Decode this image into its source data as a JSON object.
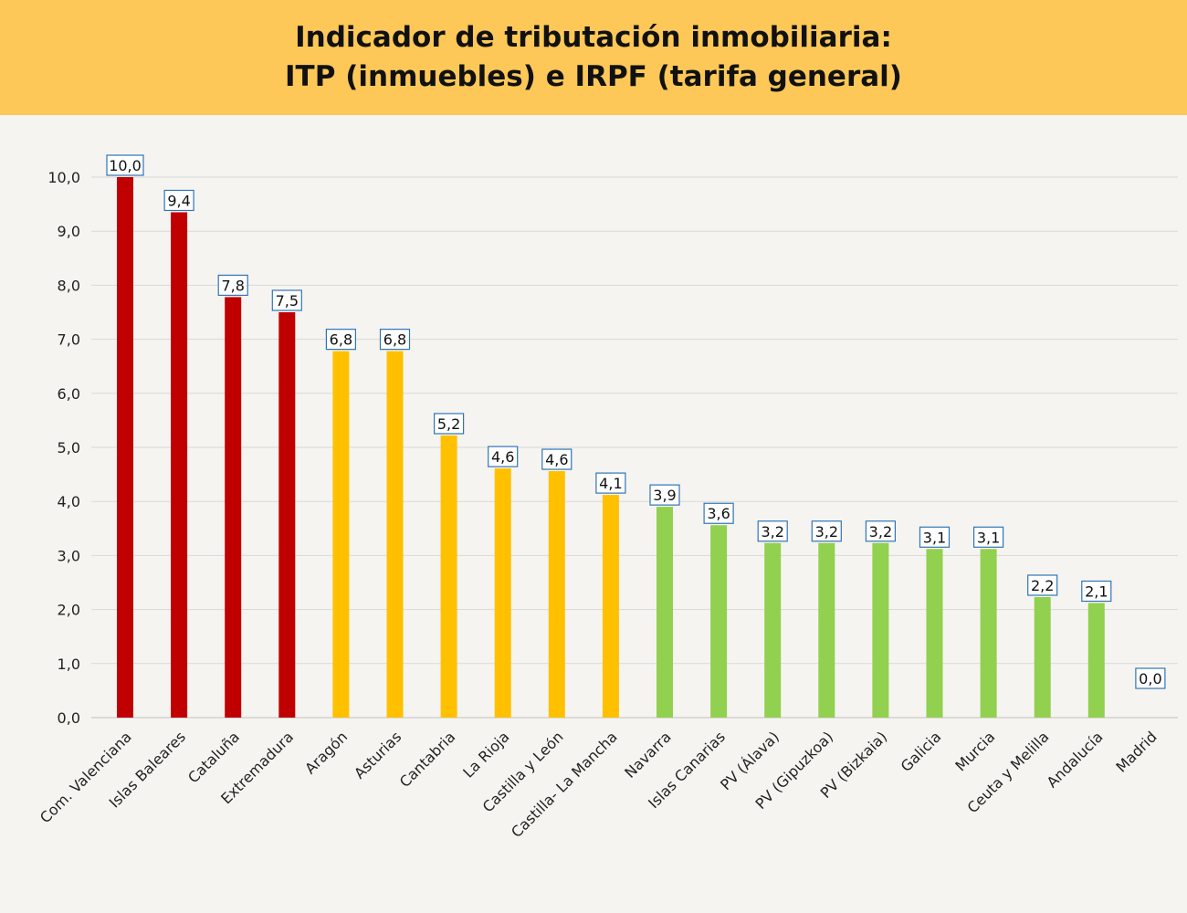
{
  "header": {
    "title_line1": "Indicador de tributación inmobiliaria:",
    "title_line2": "ITP (inmuebles) e IRPF (tarifa general)"
  },
  "colors": {
    "banner": "#fdc857",
    "background": "#f6f4f0",
    "high": "#c00000",
    "medium": "#ffc000",
    "low": "#92d050",
    "label_border": "#2e75b6",
    "grid": "#d9d9d9"
  },
  "chart_data": {
    "type": "bar",
    "title": "Indicador de tributación inmobiliaria: ITP (inmuebles) e IRPF (tarifa general)",
    "xlabel": "",
    "ylabel": "",
    "ylim": [
      0,
      10
    ],
    "yticks": [
      "0,0",
      "1,0",
      "2,0",
      "3,0",
      "4,0",
      "5,0",
      "6,0",
      "7,0",
      "8,0",
      "9,0",
      "10,0"
    ],
    "grid": true,
    "legend": "none",
    "categories": [
      "Com. Valenciana",
      "Islas Baleares",
      "Cataluña",
      "Extremadura",
      "Aragón",
      "Asturias",
      "Cantabria",
      "La Rioja",
      "Castilla y León",
      "Castilla- La Mancha",
      "Navarra",
      "Islas Canarias",
      "PV (Álava)",
      "PV (Gipuzkoa)",
      "PV (Bizkaia)",
      "Galicia",
      "Murcia",
      "Ceuta y Melilla",
      "Andalucía",
      "Madrid"
    ],
    "values": [
      10.0,
      9.35,
      7.78,
      7.5,
      6.78,
      6.78,
      5.22,
      4.61,
      4.56,
      4.12,
      3.9,
      3.56,
      3.23,
      3.23,
      3.23,
      3.12,
      3.12,
      2.23,
      2.12,
      0.0
    ],
    "data_labels": [
      "10,0",
      "9,4",
      "7,8",
      "7,5",
      "6,8",
      "6,8",
      "5,2",
      "4,6",
      "4,6",
      "4,1",
      "3,9",
      "3,6",
      "3,2",
      "3,2",
      "3,2",
      "3,1",
      "3,1",
      "2,2",
      "2,1",
      "0,0"
    ],
    "bar_colors": [
      "#c00000",
      "#c00000",
      "#c00000",
      "#c00000",
      "#ffc000",
      "#ffc000",
      "#ffc000",
      "#ffc000",
      "#ffc000",
      "#ffc000",
      "#92d050",
      "#92d050",
      "#92d050",
      "#92d050",
      "#92d050",
      "#92d050",
      "#92d050",
      "#92d050",
      "#92d050",
      "#92d050"
    ]
  }
}
